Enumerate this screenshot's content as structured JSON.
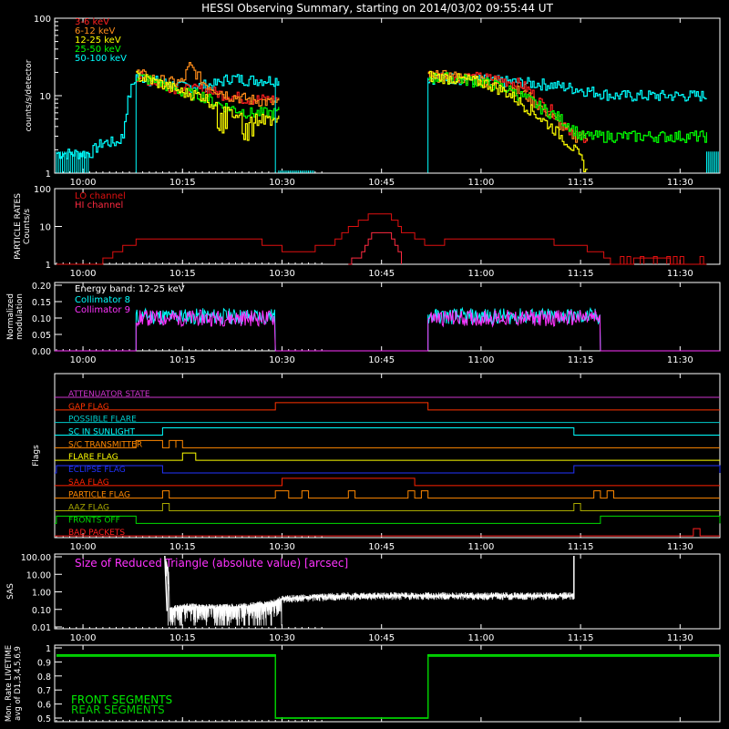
{
  "title": "HESSI Observing Summary, starting on 2014/03/02 09:55:44 UT",
  "time_ticks": [
    "10:00",
    "10:15",
    "10:30",
    "10:45",
    "11:00",
    "11:15",
    "11:30"
  ],
  "colors": {
    "3-6": "#ff2020",
    "6-12": "#ff8c1a",
    "12-25": "#ffff00",
    "25-50": "#00ff00",
    "50-100": "#00ffff",
    "lo": "#e01010",
    "hi": "#ff2a40",
    "coll8": "#00ffff",
    "coll9": "#ff33ff",
    "front": "#00ee00",
    "rear": "#00cc00",
    "sas": "#ffffff",
    "sas_title": "#ff33ff"
  },
  "chart_data": [
    {
      "type": "line",
      "name": "count-rates",
      "ylabel": "counts/s/detector",
      "yscale": "log",
      "ylim": [
        1,
        100
      ],
      "ytick_labels": [
        "1",
        "10",
        "100"
      ],
      "xlim": [
        "09:55:44",
        "11:36:00"
      ],
      "legend": [
        "3-6 keV",
        "6-12 keV",
        "12-25 keV",
        "25-50 keV",
        "50-100 keV"
      ],
      "legend_position": "top-left",
      "series": [
        {
          "name": "3-6 keV",
          "x": [
            "10:08",
            "10:09",
            "10:12",
            "10:15",
            "10:18",
            "10:20",
            "10:22",
            "10:25",
            "10:29",
            "10:52",
            "10:55",
            "11:00",
            "11:03",
            "11:06",
            "11:09",
            "11:12",
            "11:14",
            "11:16"
          ],
          "y": [
            18,
            17,
            14,
            12,
            12,
            11,
            10,
            9,
            9,
            18,
            18,
            17,
            16,
            14,
            8,
            5,
            3,
            3
          ]
        },
        {
          "name": "6-12 keV",
          "x": [
            "10:08",
            "10:10",
            "10:13",
            "10:15",
            "10:16",
            "10:18",
            "10:20",
            "10:22",
            "10:25",
            "10:29",
            "10:52",
            "10:55",
            "11:00",
            "11:03",
            "11:06",
            "11:09",
            "11:12",
            "11:14",
            "11:16"
          ],
          "y": [
            20,
            17,
            15,
            15,
            24,
            15,
            12,
            10,
            9,
            8,
            18,
            18,
            16,
            14,
            11,
            7,
            4,
            3,
            3
          ]
        },
        {
          "name": "12-25 keV",
          "x": [
            "10:08",
            "10:10",
            "10:13",
            "10:15",
            "10:18",
            "10:20",
            "10:22",
            "10:25",
            "10:29",
            "10:52",
            "10:55",
            "11:00",
            "11:03",
            "11:06",
            "11:09",
            "11:12",
            "11:16"
          ],
          "y": [
            18,
            16,
            13,
            11,
            10,
            7,
            6,
            5,
            5,
            18,
            17,
            15,
            12,
            8,
            5,
            3,
            1
          ]
        },
        {
          "name": "25-50 keV",
          "x": [
            "10:08",
            "10:10",
            "10:13",
            "10:15",
            "10:18",
            "10:20",
            "10:22",
            "10:25",
            "10:29",
            "10:52",
            "10:55",
            "11:00",
            "11:03",
            "11:06",
            "11:09",
            "11:12",
            "11:15",
            "11:20",
            "11:25",
            "11:30",
            "11:34"
          ],
          "y": [
            18,
            16,
            13,
            11,
            10,
            8,
            7,
            6,
            6,
            17,
            17,
            15,
            13,
            10,
            7,
            5,
            3,
            3,
            3,
            3,
            3
          ]
        },
        {
          "name": "50-100 keV",
          "x": [
            "09:56",
            "10:01",
            "10:03",
            "10:05",
            "10:06",
            "10:08",
            "10:10",
            "10:15",
            "10:20",
            "10:22",
            "10:25",
            "10:29",
            "10:52",
            "10:55",
            "11:00",
            "11:05",
            "11:10",
            "11:15",
            "11:20",
            "11:25",
            "11:30",
            "11:34"
          ],
          "y": [
            1.8,
            1.8,
            2.5,
            2.5,
            3,
            18,
            16,
            13,
            14,
            17,
            16,
            16,
            17,
            17,
            16,
            15,
            14,
            12,
            10,
            10,
            10,
            10
          ]
        }
      ]
    },
    {
      "type": "line",
      "name": "particle-rates",
      "ylabel": "PARTICLE RATES Counts/s",
      "yscale": "log",
      "ylim": [
        1,
        100
      ],
      "ytick_labels": [
        "1",
        "10",
        "100"
      ],
      "legend": [
        "LO channel",
        "HI channel"
      ],
      "legend_position": "top-left",
      "series": [
        {
          "name": "LO channel",
          "x": [
            "09:56",
            "10:02",
            "10:05",
            "10:08",
            "10:12",
            "10:15",
            "10:20",
            "10:25",
            "10:28",
            "10:33",
            "10:38",
            "10:41",
            "10:43",
            "10:44",
            "10:46",
            "10:48",
            "10:52",
            "10:58",
            "11:04",
            "11:10",
            "11:15",
            "11:20",
            "11:26",
            "11:30",
            "11:34"
          ],
          "y": [
            1,
            1,
            2,
            4,
            5,
            4,
            4,
            5,
            3,
            2,
            4,
            12,
            18,
            22,
            18,
            8,
            3,
            5,
            5,
            4,
            3,
            1,
            1.5,
            1,
            1
          ]
        },
        {
          "name": "HI channel",
          "x": [
            "10:40",
            "10:42",
            "10:43",
            "10:44",
            "10:45",
            "10:46",
            "10:47",
            "10:48"
          ],
          "y": [
            1,
            2,
            4,
            8,
            8,
            6,
            3,
            1
          ]
        }
      ]
    },
    {
      "type": "line",
      "name": "modulation",
      "ylabel": "Normalized modulation",
      "ylim": [
        0,
        0.2
      ],
      "ytick_labels": [
        "0.00",
        "0.05",
        "0.10",
        "0.15",
        "0.20"
      ],
      "annotation": "Energy band: 12-25 keV",
      "legend": [
        "Collimator 8",
        "Collimator 9"
      ],
      "legend_position": "top-left",
      "series": [
        {
          "name": "Collimator 8",
          "x": [
            "10:08",
            "10:29",
            "10:52",
            "11:18"
          ],
          "y": [
            0.105,
            0.105,
            0.105,
            0.105
          ]
        },
        {
          "name": "Collimator 9",
          "x": [
            "10:08",
            "10:29",
            "10:52",
            "11:18"
          ],
          "y": [
            0.1,
            0.1,
            0.1,
            0.1
          ]
        }
      ]
    },
    {
      "type": "line",
      "name": "flags",
      "ylabel": "Flags",
      "flags": [
        {
          "label": "ATTENUATOR STATE",
          "color": "#cc33cc",
          "on": []
        },
        {
          "label": "GAP FLAG",
          "color": "#ff3300",
          "on": [
            [
              "10:29",
              "10:52"
            ]
          ]
        },
        {
          "label": "POSSIBLE FLARE",
          "color": "#00cccc",
          "on": []
        },
        {
          "label": "SC IN SUNLIGHT",
          "color": "#00ffff",
          "on": [
            [
              "10:12",
              "11:14"
            ]
          ]
        },
        {
          "label": "S/C TRANSMITTER",
          "color": "#ff8800",
          "on": [
            [
              "10:08",
              "10:12"
            ],
            [
              "10:13",
              "10:14"
            ],
            [
              "10:14",
              "10:15"
            ]
          ]
        },
        {
          "label": "FLARE FLAG",
          "color": "#ffff00",
          "on": [
            [
              "10:15",
              "10:17"
            ]
          ]
        },
        {
          "label": "ECLIPSE FLAG",
          "color": "#2233ff",
          "on": [
            [
              "09:56",
              "10:12"
            ],
            [
              "11:14",
              "11:36"
            ]
          ]
        },
        {
          "label": "SAA FLAG",
          "color": "#ff2200",
          "on": [
            [
              "10:30",
              "10:50"
            ]
          ]
        },
        {
          "label": "PARTICLE FLAG",
          "color": "#ff8800",
          "on": [
            [
              "10:12",
              "10:13"
            ],
            [
              "10:29",
              "10:31"
            ],
            [
              "10:33",
              "10:34"
            ],
            [
              "10:40",
              "10:41"
            ],
            [
              "10:49",
              "10:50"
            ],
            [
              "10:51",
              "10:52"
            ],
            [
              "11:17",
              "11:18"
            ],
            [
              "11:19",
              "11:20"
            ]
          ]
        },
        {
          "label": "AAZ FLAG",
          "color": "#aaaa00",
          "on": [
            [
              "10:12",
              "10:13"
            ],
            [
              "11:14",
              "11:15"
            ]
          ]
        },
        {
          "label": "FRONTS OFF",
          "color": "#00dd00",
          "on": [
            [
              "09:56",
              "10:08"
            ],
            [
              "11:18",
              "11:36"
            ]
          ]
        },
        {
          "label": "BAD PACKETS",
          "color": "#ff2020",
          "on": [
            [
              "11:32",
              "11:33"
            ]
          ]
        }
      ]
    },
    {
      "type": "line",
      "name": "sas",
      "ylabel": "SAS",
      "yscale": "log",
      "ylim": [
        0.01,
        100
      ],
      "ytick_labels": [
        "0.01",
        "0.10",
        "1.00",
        "10.00",
        "100.00"
      ],
      "annotation": "Size of Reduced Triangle (absolute value) [arcsec]",
      "series": [
        {
          "name": "",
          "x": [
            "10:12",
            "10:13",
            "10:15",
            "10:20",
            "10:25",
            "10:29",
            "10:30",
            "10:35",
            "10:40",
            "10:50",
            "11:00",
            "11:10",
            "11:14",
            "11:14"
          ],
          "y": [
            100,
            0.08,
            0.15,
            0.12,
            0.15,
            0.25,
            0.4,
            0.5,
            0.6,
            0.6,
            0.6,
            0.6,
            0.6,
            100
          ]
        }
      ]
    },
    {
      "type": "line",
      "name": "livetime",
      "ylabel": "Mon. Rate LIVETIME avg of D1,3,4,5,6,9",
      "ylim": [
        0.5,
        1.0
      ],
      "ytick_labels": [
        "0.5",
        "0.6",
        "0.7",
        "0.8",
        "0.9",
        "1"
      ],
      "legend": [
        "FRONT SEGMENTS",
        "REAR SEGMENTS"
      ],
      "legend_position": "bottom-left",
      "series": [
        {
          "name": "FRONT SEGMENTS",
          "x": [
            "09:56",
            "10:29",
            "10:29",
            "10:52",
            "10:52",
            "11:36"
          ],
          "y": [
            0.95,
            0.95,
            0.5,
            0.5,
            0.95,
            0.95
          ]
        },
        {
          "name": "REAR SEGMENTS",
          "x": [
            "09:56",
            "10:29",
            "10:29",
            "10:52",
            "10:52",
            "11:36"
          ],
          "y": [
            0.94,
            0.94,
            0.5,
            0.5,
            0.94,
            0.94
          ]
        }
      ]
    }
  ]
}
